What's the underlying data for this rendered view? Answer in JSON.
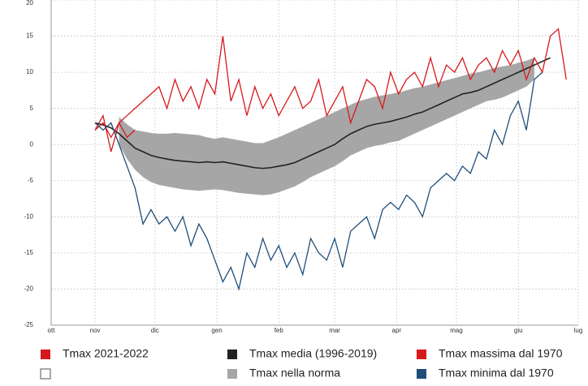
{
  "chart_data": {
    "type": "line",
    "xlim": [
      9,
      273
    ],
    "ylim": [
      -25,
      20
    ],
    "xticks": [
      {
        "value": 9,
        "label": "ott"
      },
      {
        "value": 31,
        "label": "nov"
      },
      {
        "value": 61,
        "label": "dic"
      },
      {
        "value": 92,
        "label": "gen"
      },
      {
        "value": 123,
        "label": "feb"
      },
      {
        "value": 151,
        "label": "mar"
      },
      {
        "value": 182,
        "label": "apr"
      },
      {
        "value": 212,
        "label": "mag"
      },
      {
        "value": 243,
        "label": "giu"
      },
      {
        "value": 273,
        "label": "lug"
      }
    ],
    "yticks": [
      -25,
      -20,
      -15,
      -10,
      -5,
      0,
      5,
      10,
      15,
      20
    ],
    "grid": true,
    "x": [
      31,
      35,
      39,
      43,
      47,
      51,
      55,
      59,
      63,
      67,
      71,
      75,
      79,
      83,
      87,
      91,
      95,
      99,
      103,
      107,
      111,
      115,
      119,
      123,
      127,
      131,
      135,
      139,
      143,
      147,
      151,
      155,
      159,
      163,
      167,
      171,
      175,
      179,
      183,
      187,
      191,
      195,
      199,
      203,
      207,
      211,
      215,
      219,
      223,
      227,
      231,
      235,
      239,
      243,
      247,
      251,
      255,
      259,
      263,
      267
    ],
    "series": [
      {
        "name": "Tmax 2021-2022",
        "color": "#d7191c",
        "values": [
          2,
          4,
          -1,
          3,
          1,
          2,
          null,
          null,
          null,
          null,
          null,
          null,
          null,
          null,
          null,
          null,
          null,
          null,
          null,
          null,
          null,
          null,
          null,
          null,
          null,
          null,
          null,
          null,
          null,
          null,
          null,
          null,
          null,
          null,
          null,
          null,
          null,
          null,
          null,
          null,
          null,
          null,
          null,
          null,
          null,
          null,
          null,
          null,
          null,
          null,
          null,
          null,
          null,
          null,
          null,
          null,
          null,
          null,
          null,
          null
        ]
      },
      {
        "name": "Tmax media (1996-2019)",
        "color": "#222222",
        "values": [
          3,
          2.7,
          2.3,
          1.5,
          0.5,
          -0.5,
          -1,
          -1.5,
          -1.8,
          -2,
          -2.2,
          -2.3,
          -2.4,
          -2.5,
          -2.4,
          -2.5,
          -2.4,
          -2.6,
          -2.8,
          -3,
          -3.2,
          -3.3,
          -3.2,
          -3,
          -2.8,
          -2.5,
          -2,
          -1.5,
          -1,
          -0.5,
          0,
          0.8,
          1.5,
          2,
          2.5,
          2.8,
          3,
          3.2,
          3.5,
          3.8,
          4.2,
          4.5,
          5,
          5.5,
          6,
          6.5,
          7,
          7.2,
          7.5,
          8,
          8.5,
          9,
          9.5,
          10,
          10.5,
          11,
          11.5,
          12,
          null,
          null
        ]
      },
      {
        "name": "Tmax massima dal 1970",
        "color": "#d7191c",
        "values": [
          2,
          3,
          1,
          3,
          4,
          5,
          6,
          7,
          8,
          5,
          9,
          6,
          8,
          5,
          9,
          7,
          15,
          6,
          9,
          4,
          8,
          5,
          7,
          4,
          6,
          8,
          5,
          6,
          9,
          4,
          6,
          8,
          3,
          6,
          9,
          8,
          5,
          10,
          7,
          9,
          10,
          8,
          12,
          8,
          11,
          10,
          12,
          9,
          11,
          12,
          10,
          13,
          11,
          13,
          9,
          12,
          10,
          15,
          16,
          9
        ]
      },
      {
        "name": "Tmax nella norma",
        "color": "#a6a6a6",
        "high": [
          null,
          null,
          null,
          3.8,
          2.8,
          2,
          1.8,
          1.6,
          1.5,
          1.5,
          1.6,
          1.5,
          1.4,
          1.3,
          1,
          0.8,
          1,
          0.8,
          0.6,
          0.4,
          0.2,
          0.2,
          0.6,
          1,
          1.5,
          2,
          2.5,
          3,
          3.5,
          4,
          4.5,
          5,
          5.5,
          6,
          6.3,
          6.6,
          6.8,
          7,
          7.2,
          7.5,
          7.8,
          8,
          8.3,
          8.6,
          8.9,
          9.2,
          9.5,
          9.8,
          10,
          10.3,
          10.6,
          10.8,
          11,
          11.3,
          11.6,
          12,
          null,
          null,
          null,
          null
        ],
        "low": [
          null,
          null,
          null,
          0,
          -2,
          -3.5,
          -4.5,
          -5.2,
          -5.6,
          -5.8,
          -6,
          -6.2,
          -6.3,
          -6.4,
          -6.3,
          -6.2,
          -6.3,
          -6.5,
          -6.7,
          -6.8,
          -6.9,
          -7,
          -6.9,
          -6.6,
          -6.2,
          -5.8,
          -5.2,
          -4.5,
          -4,
          -3.5,
          -3,
          -2.3,
          -1.5,
          -1,
          -0.5,
          -0.2,
          0,
          0.3,
          0.5,
          1,
          1.5,
          2,
          2.5,
          3,
          3.5,
          4,
          4.5,
          5,
          5.5,
          6,
          6.2,
          6.5,
          7,
          7.5,
          8,
          9,
          null,
          null,
          null,
          null
        ]
      },
      {
        "name": "Tmax minima dal 1970",
        "color": "#1f4e79",
        "values": [
          3,
          2,
          3,
          0,
          -3,
          -6,
          -11,
          -9,
          -11,
          -10,
          -12,
          -10,
          -14,
          -11,
          -13,
          -16,
          -19,
          -17,
          -20,
          -15,
          -17,
          -13,
          -16,
          -14,
          -17,
          -15,
          -18,
          -13,
          -15,
          -16,
          -13,
          -17,
          -12,
          -11,
          -10,
          -13,
          -9,
          -8,
          -9,
          -7,
          -8,
          -10,
          -6,
          -5,
          -4,
          -5,
          -3,
          -4,
          -1,
          -2,
          2,
          0,
          4,
          6,
          2,
          9,
          10,
          null,
          null,
          null
        ]
      }
    ]
  }
}
